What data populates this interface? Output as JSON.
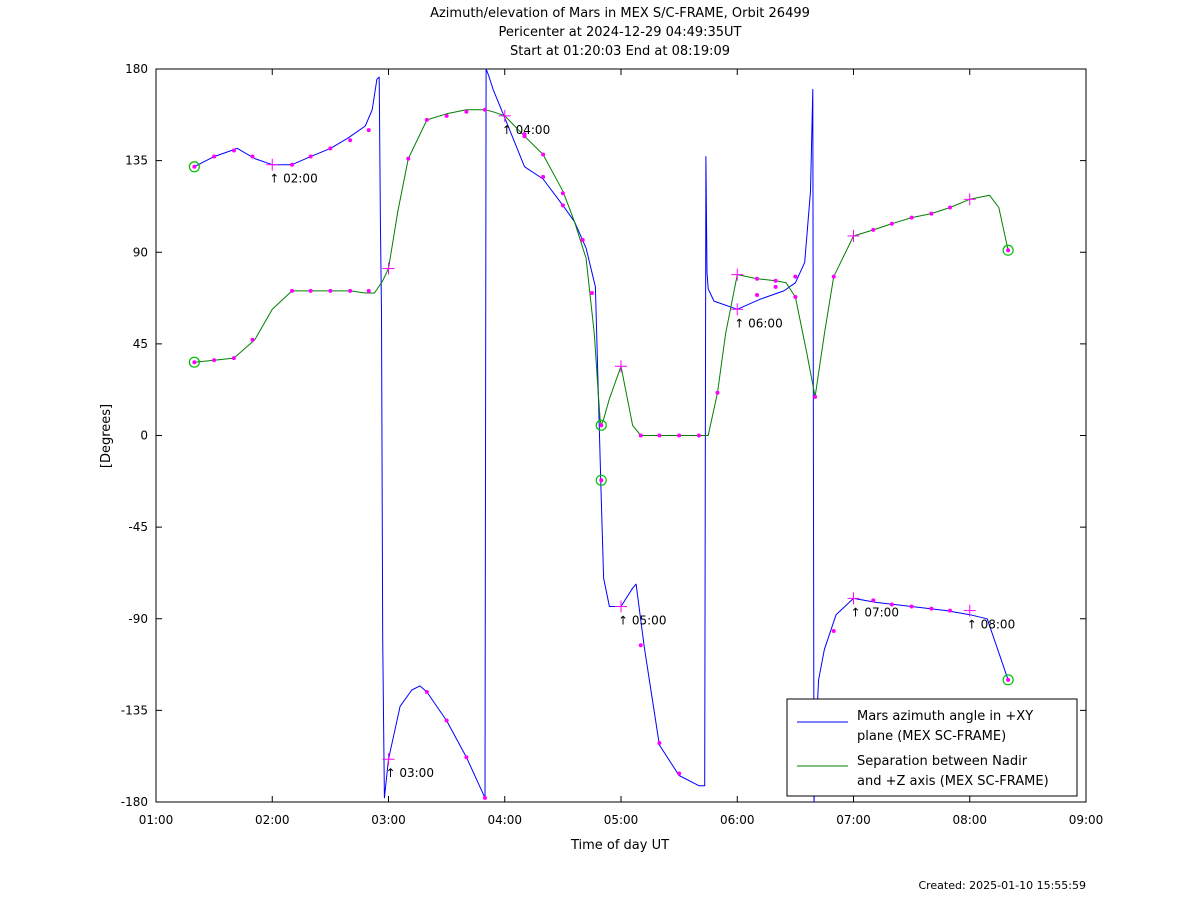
{
  "chart_data": {
    "type": "line",
    "title_lines": [
      "Azimuth/elevation of Mars in MEX S/C-FRAME,  Orbit 26499",
      "Pericenter at 2024-12-29 04:49:35UT",
      "Start at 01:20:03 End at 08:19:09"
    ],
    "xlabel": "Time of day UT",
    "ylabel": "[Degrees]",
    "xlim": [
      1,
      9
    ],
    "ylim": [
      -180,
      180
    ],
    "x_ticks": [
      "01:00",
      "02:00",
      "03:00",
      "04:00",
      "05:00",
      "06:00",
      "07:00",
      "08:00",
      "09:00"
    ],
    "y_ticks": [
      "180",
      "135",
      "90",
      "45",
      "0",
      "-45",
      "-90",
      "-135",
      "-180"
    ],
    "legend_position": "bottom-right",
    "series": [
      {
        "name": "Mars azimuth angle in +XY plane (MEX SC-FRAME)",
        "legend_lines": [
          "Mars azimuth angle in +XY",
          "plane (MEX SC-FRAME)"
        ],
        "color": "#0000ff",
        "x": [
          1.33,
          1.5,
          1.7,
          1.85,
          2.0,
          2.17,
          2.33,
          2.5,
          2.65,
          2.8,
          2.86,
          2.9,
          2.92,
          2.93,
          2.94,
          2.95,
          2.965,
          3.0,
          3.1,
          3.2,
          3.27,
          3.33,
          3.5,
          3.67,
          3.83,
          3.84,
          3.86,
          3.9,
          4.0,
          4.17,
          4.33,
          4.5,
          4.6,
          4.7,
          4.78,
          4.8,
          4.83,
          4.85,
          4.9,
          5.0,
          5.1,
          5.13,
          5.2,
          5.33,
          5.5,
          5.67,
          5.72,
          5.73,
          5.74,
          5.75,
          5.8,
          6.0,
          6.2,
          6.4,
          6.5,
          6.58,
          6.63,
          6.65,
          6.66,
          6.68,
          6.69,
          6.7,
          6.75,
          6.85,
          7.0,
          7.2,
          7.5,
          7.8,
          8.0,
          8.15,
          8.33
        ],
        "y": [
          132,
          137,
          141,
          136,
          133,
          133,
          137,
          141,
          146,
          152,
          160,
          175,
          176,
          105,
          60,
          -100,
          -178,
          -159,
          -133,
          -125,
          -123,
          -126,
          -140,
          -158,
          -178,
          180,
          177,
          170,
          156,
          132,
          126,
          113,
          105,
          92,
          73,
          30,
          -30,
          -70,
          -84,
          -84,
          -75,
          -73,
          -104,
          -152,
          -167,
          -172,
          -172,
          137,
          80,
          72,
          66,
          62,
          67,
          71,
          75,
          85,
          120,
          170,
          -180,
          -150,
          -131,
          -120,
          -105,
          -88,
          -80,
          -82,
          -84,
          -86,
          -88,
          -90,
          -120
        ]
      },
      {
        "name": "Separation between Nadir and +Z axis (MEX SC-FRAME)",
        "legend_lines": [
          "Separation between Nadir",
          "and +Z axis (MEX SC-FRAME)"
        ],
        "color": "#008000",
        "x": [
          1.33,
          1.5,
          1.67,
          1.85,
          2.0,
          2.17,
          2.35,
          2.5,
          2.67,
          2.8,
          2.88,
          2.95,
          3.0,
          3.08,
          3.17,
          3.33,
          3.5,
          3.67,
          3.83,
          3.9,
          4.0,
          4.17,
          4.33,
          4.5,
          4.6,
          4.7,
          4.77,
          4.8,
          4.82,
          4.83,
          4.85,
          4.9,
          5.0,
          5.1,
          5.17,
          5.33,
          5.5,
          5.67,
          5.75,
          5.83,
          5.9,
          6.0,
          6.17,
          6.33,
          6.42,
          6.5,
          6.6,
          6.67,
          6.75,
          6.83,
          7.0,
          7.17,
          7.33,
          7.5,
          7.67,
          7.83,
          8.0,
          8.17,
          8.25,
          8.33
        ],
        "y": [
          36,
          37,
          38,
          47,
          62,
          71,
          71,
          71,
          71,
          70,
          70,
          76,
          82,
          110,
          136,
          155,
          158,
          160,
          160,
          159,
          157,
          147,
          138,
          120,
          105,
          87,
          50,
          24,
          8,
          5,
          8,
          18,
          34,
          5,
          0,
          0,
          0,
          0,
          0,
          21,
          50,
          79,
          77,
          76,
          75,
          68,
          40,
          19,
          50,
          78,
          98,
          101,
          104,
          107,
          109,
          112,
          116,
          118,
          112,
          91
        ]
      }
    ],
    "markers": {
      "dot_color": "#ff00ff",
      "circle_color": "#00c000",
      "dots": [
        [
          1.5,
          137
        ],
        [
          1.67,
          140
        ],
        [
          1.83,
          137
        ],
        [
          2.17,
          133
        ],
        [
          2.33,
          137
        ],
        [
          2.5,
          141
        ],
        [
          2.67,
          145
        ],
        [
          2.83,
          150
        ],
        [
          3.33,
          -126
        ],
        [
          3.5,
          -140
        ],
        [
          3.67,
          -158
        ],
        [
          3.83,
          -178
        ],
        [
          4.17,
          148
        ],
        [
          4.33,
          127
        ],
        [
          4.5,
          113
        ],
        [
          4.67,
          96
        ],
        [
          5.17,
          -103
        ],
        [
          5.33,
          -151
        ],
        [
          5.5,
          -166
        ],
        [
          6.17,
          69
        ],
        [
          6.33,
          73
        ],
        [
          6.5,
          78
        ],
        [
          6.83,
          -96
        ],
        [
          7.17,
          -81
        ],
        [
          7.33,
          -83
        ],
        [
          7.5,
          -84
        ],
        [
          7.67,
          -85
        ],
        [
          7.83,
          -86
        ],
        [
          1.5,
          37
        ],
        [
          1.67,
          38
        ],
        [
          1.83,
          47
        ],
        [
          2.17,
          71
        ],
        [
          2.33,
          71
        ],
        [
          2.5,
          71
        ],
        [
          2.67,
          71
        ],
        [
          2.83,
          71
        ],
        [
          3.17,
          136
        ],
        [
          3.33,
          155
        ],
        [
          3.5,
          157
        ],
        [
          3.67,
          159
        ],
        [
          3.83,
          160
        ],
        [
          4.17,
          147
        ],
        [
          4.33,
          138
        ],
        [
          4.5,
          119
        ],
        [
          4.67,
          96
        ],
        [
          4.75,
          70
        ],
        [
          5.17,
          0
        ],
        [
          5.33,
          0
        ],
        [
          5.5,
          0
        ],
        [
          5.67,
          0
        ],
        [
          5.83,
          21
        ],
        [
          6.17,
          77
        ],
        [
          6.33,
          76
        ],
        [
          6.5,
          68
        ],
        [
          6.67,
          19
        ],
        [
          6.83,
          78
        ],
        [
          7.17,
          101
        ],
        [
          7.33,
          104
        ],
        [
          7.5,
          107
        ],
        [
          7.67,
          109
        ],
        [
          7.83,
          112
        ]
      ],
      "crosses": [
        [
          2.0,
          133
        ],
        [
          3.0,
          82
        ],
        [
          3.0,
          -159
        ],
        [
          4.0,
          157
        ],
        [
          5.0,
          34
        ],
        [
          5.0,
          -84
        ],
        [
          6.0,
          79
        ],
        [
          6.0,
          62
        ],
        [
          7.0,
          98
        ],
        [
          7.0,
          -80
        ],
        [
          8.0,
          116
        ],
        [
          8.0,
          -86
        ]
      ],
      "circles": [
        [
          1.33,
          132
        ],
        [
          1.33,
          36
        ],
        [
          4.83,
          5
        ],
        [
          4.83,
          -22
        ],
        [
          8.33,
          91
        ],
        [
          8.33,
          -120
        ]
      ]
    },
    "hour_labels": [
      {
        "x": 2.0,
        "y": 133,
        "text": "02:00"
      },
      {
        "x": 3.0,
        "y": -159,
        "text": "03:00"
      },
      {
        "x": 4.0,
        "y": 157,
        "text": "04:00"
      },
      {
        "x": 5.0,
        "y": -84,
        "text": "05:00"
      },
      {
        "x": 6.0,
        "y": 62,
        "text": "06:00"
      },
      {
        "x": 7.0,
        "y": -80,
        "text": "07:00"
      },
      {
        "x": 8.0,
        "y": -86,
        "text": "08:00"
      }
    ],
    "hour_label_arrow": "↑"
  },
  "footer": "Created: 2025-01-10 15:55:59"
}
